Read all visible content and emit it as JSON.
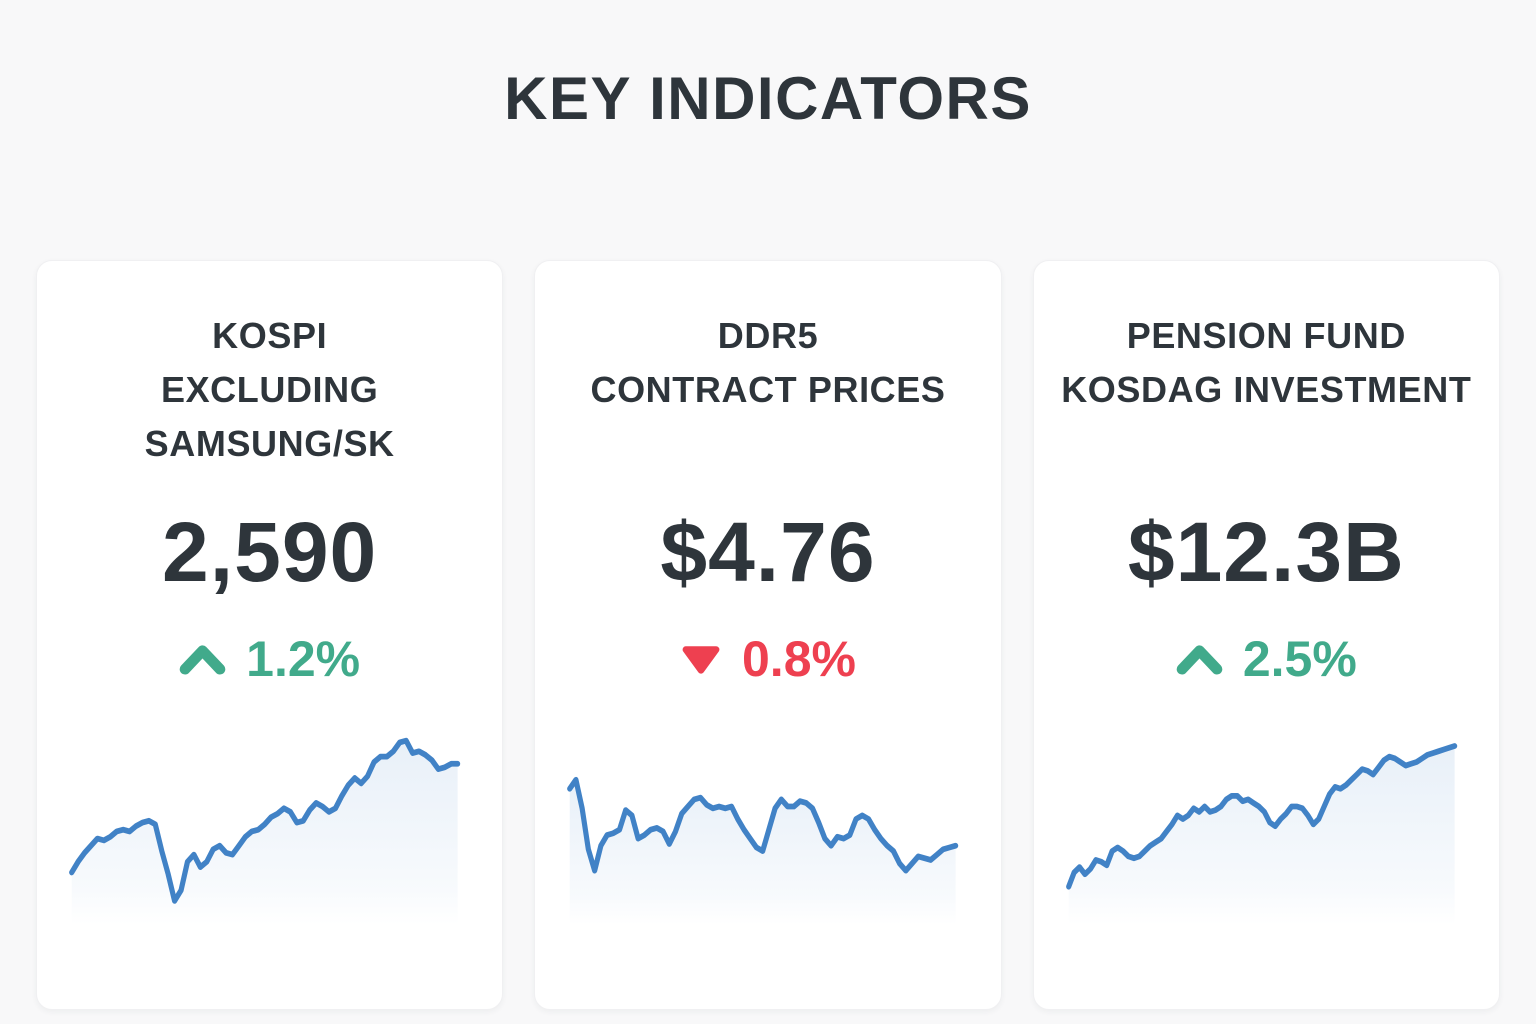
{
  "page": {
    "title": "KEY INDICATORS"
  },
  "colors": {
    "page_bg": "#f8f8f9",
    "card_bg": "#ffffff",
    "card_border": "#f0f0f2",
    "text_dark": "#2e353b",
    "green": "#41aa8b",
    "red": "#ee4050",
    "line_blue": "#4182c6"
  },
  "cards": [
    {
      "title_lines": [
        "KOSPI",
        "EXCLUDING",
        "SAMSUNG/SK"
      ],
      "value": "2,590",
      "direction": "up",
      "change": "1.2%"
    },
    {
      "title_lines": [
        "DDR5",
        "CONTRACT PRICES"
      ],
      "value": "$4.76",
      "direction": "down",
      "change": "0.8%"
    },
    {
      "title_lines": [
        "PENSION FUND",
        "KOSDAG INVESTMENT"
      ],
      "value": "$12.3B",
      "direction": "up",
      "change": "2.5%"
    }
  ],
  "chart_data": [
    {
      "type": "line",
      "title": "KOSPI excluding Samsung/SK sparkline",
      "headline_value": "2,590",
      "change": "+1.2%",
      "trend": "uptrend with sharp dip in first third",
      "axes": "hidden",
      "legend": "none",
      "grid": "off",
      "scale": "normalized 0-100 (sparkline, no tick labels shown)",
      "line_color": "#4182c6",
      "values": [
        20,
        26,
        31,
        35,
        39,
        38,
        40,
        43,
        44,
        43,
        46,
        48,
        49,
        47,
        32,
        19,
        4,
        10,
        26,
        30,
        23,
        26,
        33,
        35,
        31,
        30,
        35,
        40,
        43,
        44,
        47,
        51,
        53,
        56,
        54,
        48,
        49,
        55,
        59,
        57,
        54,
        56,
        63,
        69,
        73,
        70,
        74,
        82,
        85,
        85,
        88,
        93,
        94,
        87,
        88,
        86,
        83,
        78,
        79,
        81,
        81
      ]
    },
    {
      "type": "line",
      "title": "DDR5 contract prices sparkline",
      "headline_value": "$4.76",
      "change": "-0.8%",
      "trend": "starts high, early drop, choppy oscillation, mild downtrend to finish",
      "axes": "hidden",
      "legend": "none",
      "grid": "off",
      "scale": "normalized 0-100 (sparkline, no tick labels shown)",
      "line_color": "#4182c6",
      "values": [
        67,
        72,
        56,
        33,
        21,
        35,
        41,
        42,
        44,
        55,
        52,
        39,
        41,
        44,
        45,
        43,
        36,
        43,
        53,
        57,
        61,
        62,
        58,
        56,
        57,
        56,
        57,
        50,
        44,
        39,
        34,
        32,
        44,
        56,
        61,
        57,
        57,
        60,
        59,
        56,
        48,
        39,
        35,
        40,
        39,
        41,
        50,
        52,
        50,
        44,
        39,
        35,
        32,
        25,
        21,
        25,
        29,
        28,
        27,
        30,
        33,
        34,
        35
      ]
    },
    {
      "type": "line",
      "title": "Pension fund KOSDAG investment sparkline",
      "headline_value": "$12.3B",
      "change": "+2.5%",
      "trend": "steady uptrend with mid-course pullback, peaks at right edge",
      "axes": "hidden",
      "legend": "none",
      "grid": "off",
      "scale": "normalized 0-100 (sparkline, no tick labels shown)",
      "line_color": "#4182c6",
      "values": [
        12,
        20,
        23,
        19,
        22,
        27,
        26,
        24,
        32,
        34,
        32,
        29,
        28,
        29,
        32,
        35,
        37,
        39,
        43,
        47,
        52,
        50,
        52,
        56,
        54,
        57,
        54,
        55,
        57,
        61,
        63,
        63,
        60,
        61,
        59,
        57,
        54,
        48,
        46,
        50,
        53,
        57,
        57,
        56,
        52,
        47,
        50,
        57,
        64,
        68,
        67,
        69,
        72,
        75,
        78,
        77,
        75,
        79,
        83,
        85,
        84,
        82,
        80,
        81,
        82,
        84,
        86,
        87,
        88,
        89,
        90,
        91
      ]
    }
  ]
}
